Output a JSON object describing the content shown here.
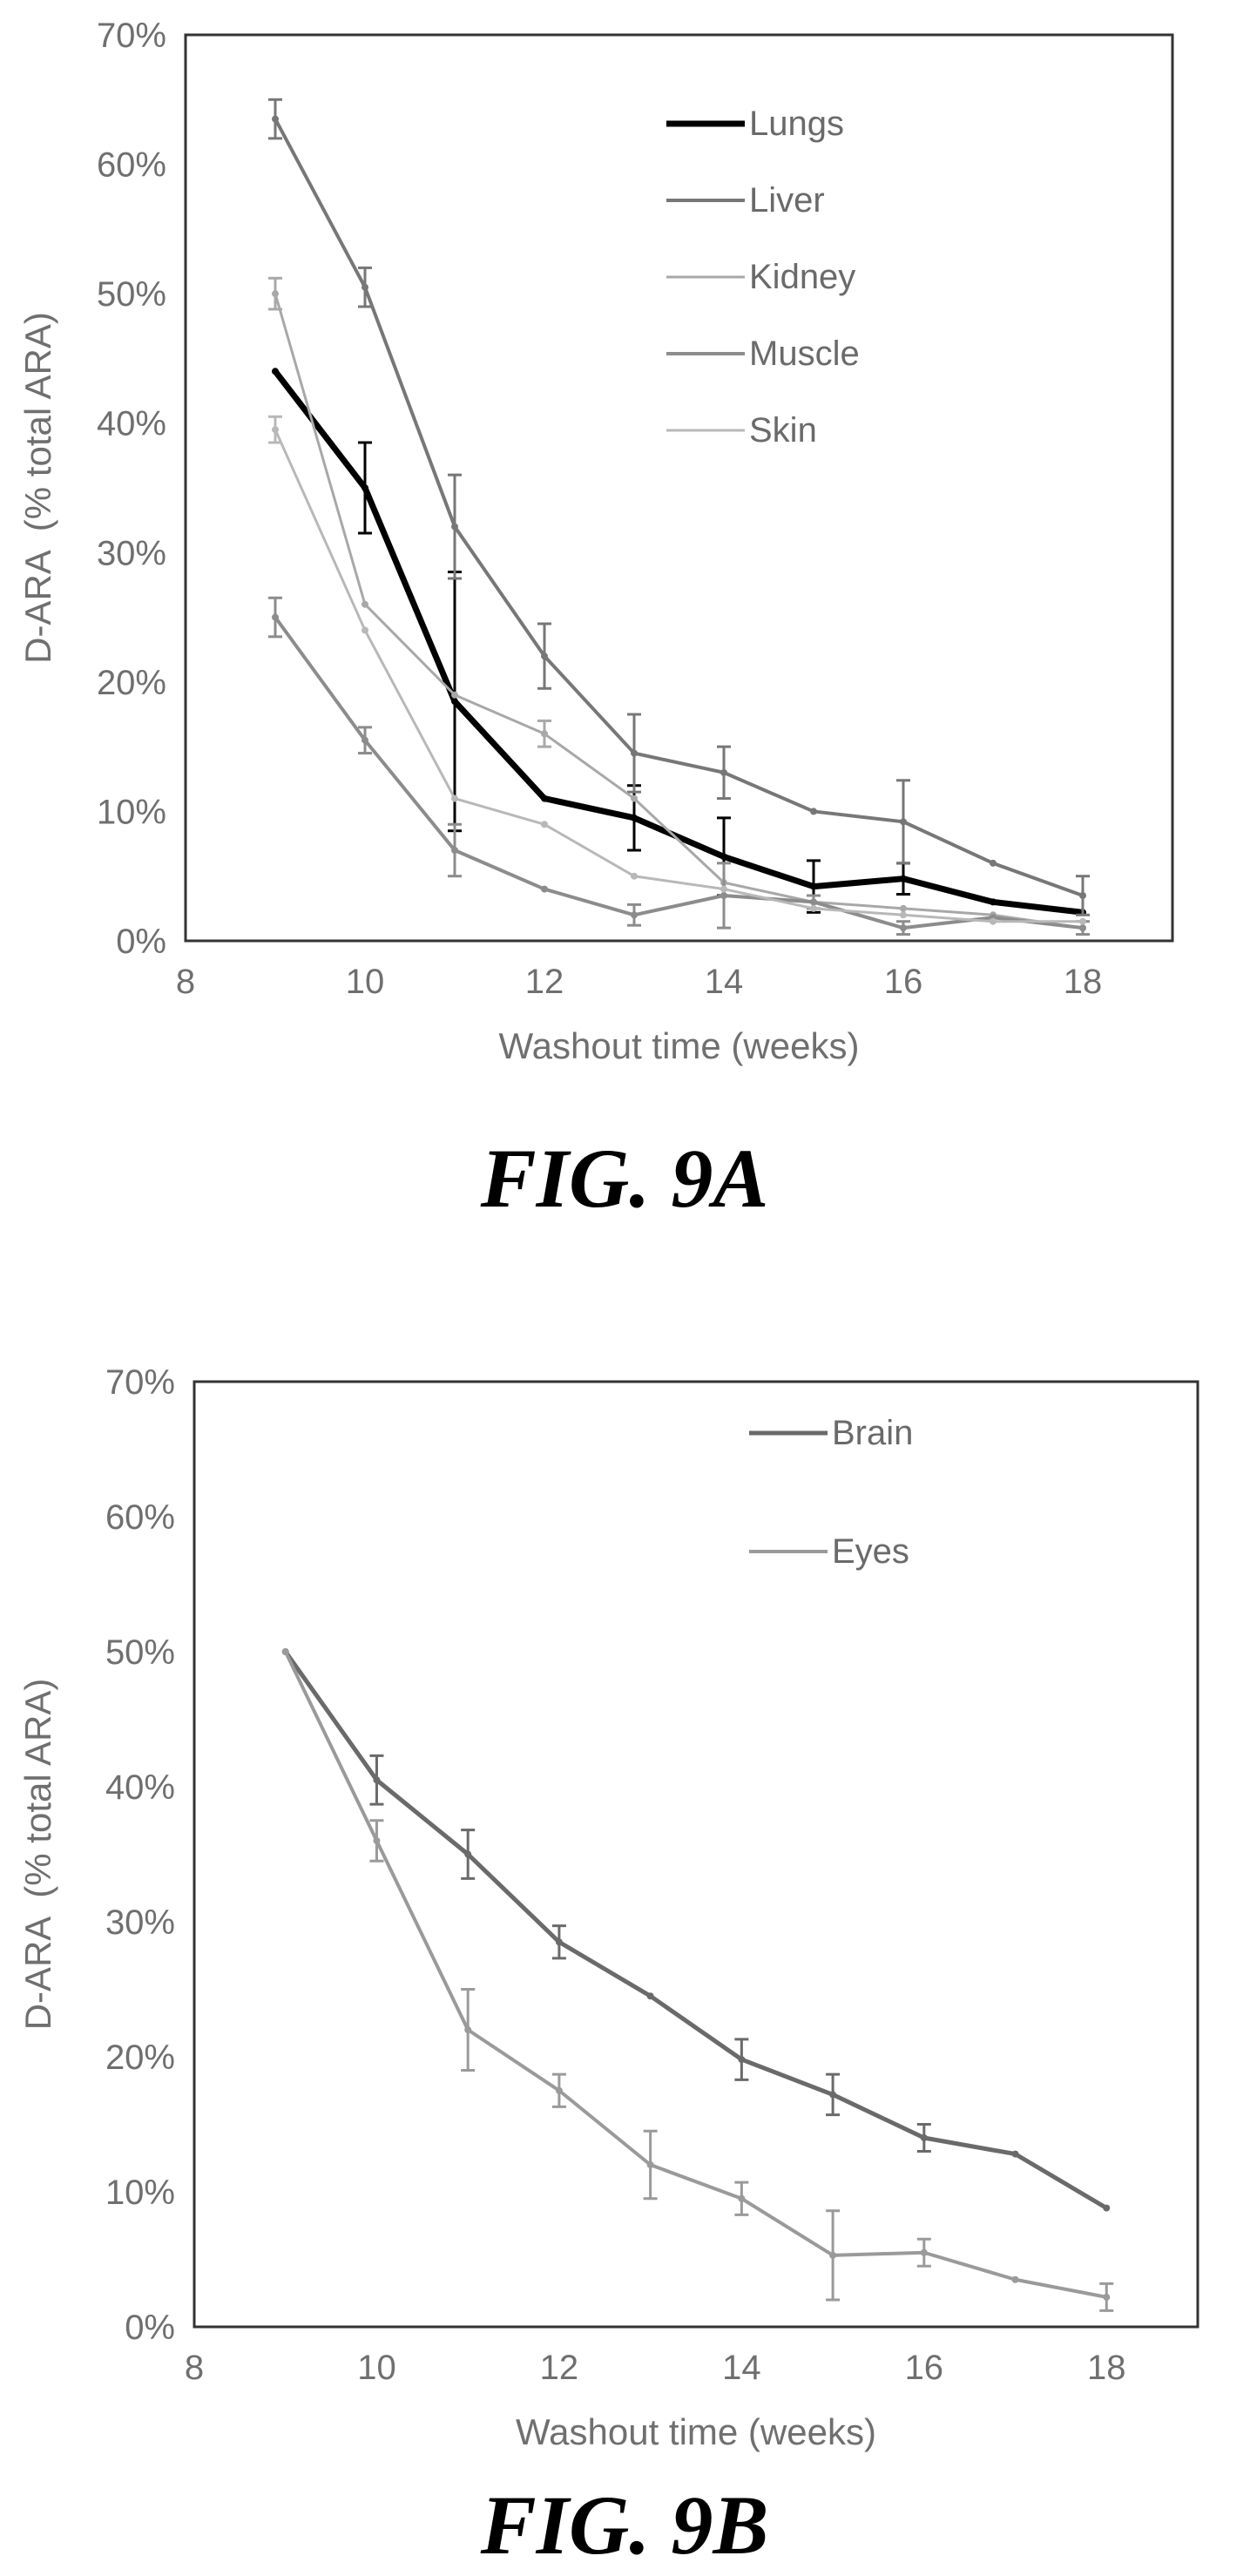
{
  "chart_data": [
    {
      "type": "line",
      "figure_label": "FIG. 9A",
      "xlabel": "Washout time (weeks)",
      "ylabel": "D-ARA  (% total ARA)",
      "xlim": [
        8,
        19
      ],
      "ylim": [
        0,
        70
      ],
      "xticks": [
        "8",
        "10",
        "12",
        "14",
        "16",
        "18"
      ],
      "yticks": [
        "0%",
        "10%",
        "20%",
        "30%",
        "40%",
        "50%",
        "60%",
        "70%"
      ],
      "legend_position": "top-right",
      "x": [
        9,
        10,
        11,
        12,
        13,
        14,
        15,
        16,
        17,
        18
      ],
      "series": [
        {
          "name": "Lungs",
          "color": "#000000",
          "width": 7,
          "values": [
            44,
            35,
            18.5,
            11,
            9.5,
            6.5,
            4.2,
            4.8,
            3,
            2.2
          ],
          "errors": [
            0,
            3.5,
            10,
            0,
            2.5,
            3,
            2,
            1.2,
            0,
            0
          ]
        },
        {
          "name": "Liver",
          "color": "#777777",
          "width": 4,
          "values": [
            63.5,
            50.5,
            32,
            22,
            14.5,
            13,
            10,
            9.2,
            6,
            3.5
          ],
          "errors": [
            1.5,
            1.5,
            4,
            2.5,
            3,
            2,
            0,
            3.2,
            0,
            1.5
          ]
        },
        {
          "name": "Kidney",
          "color": "#a8a8a8",
          "width": 3,
          "values": [
            50,
            26,
            19,
            16,
            11,
            4.5,
            3,
            2.5,
            2,
            1
          ],
          "errors": [
            1.2,
            0,
            0,
            1,
            0,
            0,
            0,
            0,
            0,
            0
          ]
        },
        {
          "name": "Muscle",
          "color": "#8c8c8c",
          "width": 4,
          "values": [
            25,
            15.5,
            7,
            4,
            2,
            3.5,
            3,
            1,
            1.8,
            1
          ],
          "errors": [
            1.5,
            1,
            2,
            0,
            0.8,
            2.5,
            0.5,
            0.5,
            0,
            0.5
          ]
        },
        {
          "name": "Skin",
          "color": "#b8b8b8",
          "width": 3,
          "values": [
            39.5,
            24,
            11,
            9,
            5,
            4,
            2.5,
            2,
            1.5,
            1.5
          ],
          "errors": [
            1,
            0,
            0,
            0,
            0,
            0,
            0,
            0,
            0,
            0
          ]
        }
      ]
    },
    {
      "type": "line",
      "figure_label": "FIG. 9B",
      "xlabel": "Washout time (weeks)",
      "ylabel": "D-ARA  (% total ARA)",
      "xlim": [
        8,
        19
      ],
      "ylim": [
        0,
        70
      ],
      "xticks": [
        "8",
        "10",
        "12",
        "14",
        "16",
        "18"
      ],
      "yticks": [
        "0%",
        "10%",
        "20%",
        "30%",
        "40%",
        "50%",
        "60%",
        "70%"
      ],
      "legend_position": "top-right",
      "x": [
        9,
        10,
        11,
        12,
        13,
        14,
        15,
        16,
        17,
        18
      ],
      "series": [
        {
          "name": "Brain",
          "color": "#6a6a6a",
          "width": 5,
          "values": [
            50,
            40.5,
            35,
            28.5,
            24.5,
            19.8,
            17.2,
            14,
            12.8,
            8.8
          ],
          "errors": [
            0,
            1.8,
            1.8,
            1.2,
            0,
            1.5,
            1.5,
            1,
            0,
            0
          ]
        },
        {
          "name": "Eyes",
          "color": "#9a9a9a",
          "width": 4,
          "values": [
            50,
            36,
            22,
            17.5,
            12,
            9.5,
            5.3,
            5.5,
            3.5,
            2.2
          ],
          "errors": [
            0,
            1.5,
            3,
            1.2,
            2.5,
            1.2,
            3.3,
            1,
            0,
            1
          ]
        }
      ]
    }
  ]
}
